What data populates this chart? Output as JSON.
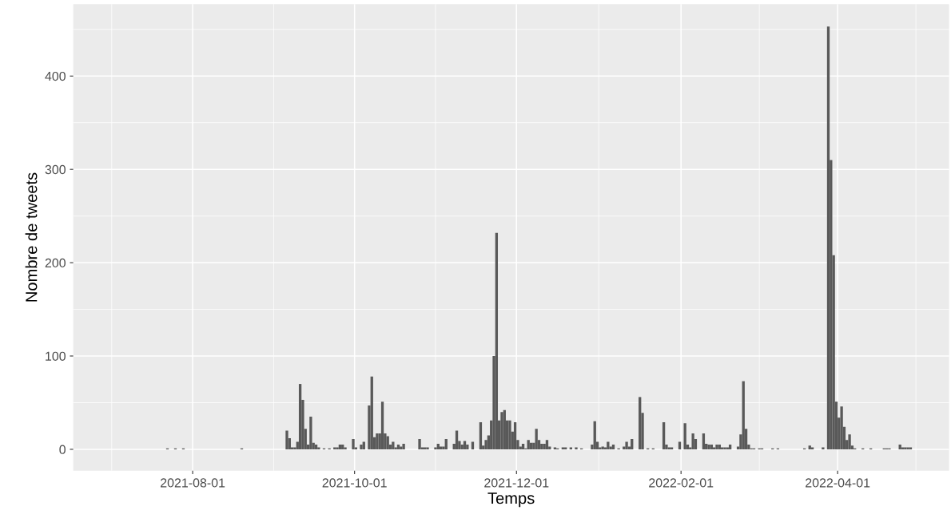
{
  "chart_data": {
    "type": "bar",
    "xlabel": "Temps",
    "ylabel": "Nombre de tweets",
    "series": [
      {
        "color": "#595959",
        "x": [
          "2021-07-22",
          "2021-07-25",
          "2021-07-28",
          "2021-08-19",
          "2021-09-05",
          "2021-09-06",
          "2021-09-07",
          "2021-09-08",
          "2021-09-09",
          "2021-09-10",
          "2021-09-11",
          "2021-09-12",
          "2021-09-13",
          "2021-09-14",
          "2021-09-15",
          "2021-09-16",
          "2021-09-17",
          "2021-09-19",
          "2021-09-21",
          "2021-09-23",
          "2021-09-24",
          "2021-09-25",
          "2021-09-26",
          "2021-09-27",
          "2021-09-30",
          "2021-10-01",
          "2021-10-03",
          "2021-10-04",
          "2021-10-06",
          "2021-10-07",
          "2021-10-08",
          "2021-10-09",
          "2021-10-10",
          "2021-10-11",
          "2021-10-12",
          "2021-10-13",
          "2021-10-14",
          "2021-10-15",
          "2021-10-16",
          "2021-10-17",
          "2021-10-18",
          "2021-10-19",
          "2021-10-25",
          "2021-10-26",
          "2021-10-27",
          "2021-10-28",
          "2021-10-31",
          "2021-11-01",
          "2021-11-02",
          "2021-11-03",
          "2021-11-04",
          "2021-11-07",
          "2021-11-08",
          "2021-11-09",
          "2021-11-10",
          "2021-11-11",
          "2021-11-12",
          "2021-11-14",
          "2021-11-17",
          "2021-11-18",
          "2021-11-19",
          "2021-11-20",
          "2021-11-21",
          "2021-11-22",
          "2021-11-23",
          "2021-11-24",
          "2021-11-25",
          "2021-11-26",
          "2021-11-27",
          "2021-11-28",
          "2021-11-29",
          "2021-11-30",
          "2021-12-01",
          "2021-12-02",
          "2021-12-03",
          "2021-12-04",
          "2021-12-05",
          "2021-12-06",
          "2021-12-07",
          "2021-12-08",
          "2021-12-09",
          "2021-12-10",
          "2021-12-11",
          "2021-12-12",
          "2021-12-13",
          "2021-12-15",
          "2021-12-16",
          "2021-12-18",
          "2021-12-19",
          "2021-12-21",
          "2021-12-23",
          "2021-12-25",
          "2021-12-29",
          "2021-12-30",
          "2021-12-31",
          "2022-01-01",
          "2022-01-02",
          "2022-01-03",
          "2022-01-04",
          "2022-01-05",
          "2022-01-06",
          "2022-01-08",
          "2022-01-10",
          "2022-01-11",
          "2022-01-12",
          "2022-01-13",
          "2022-01-16",
          "2022-01-17",
          "2022-01-19",
          "2022-01-21",
          "2022-01-25",
          "2022-01-26",
          "2022-01-27",
          "2022-01-28",
          "2022-01-31",
          "2022-02-02",
          "2022-02-03",
          "2022-02-04",
          "2022-02-05",
          "2022-02-06",
          "2022-02-09",
          "2022-02-10",
          "2022-02-11",
          "2022-02-12",
          "2022-02-13",
          "2022-02-14",
          "2022-02-15",
          "2022-02-16",
          "2022-02-17",
          "2022-02-18",
          "2022-02-19",
          "2022-02-22",
          "2022-02-23",
          "2022-02-24",
          "2022-02-25",
          "2022-02-26",
          "2022-02-27",
          "2022-02-28",
          "2022-03-02",
          "2022-03-03",
          "2022-03-07",
          "2022-03-09",
          "2022-03-19",
          "2022-03-21",
          "2022-03-22",
          "2022-03-26",
          "2022-03-28",
          "2022-03-29",
          "2022-03-30",
          "2022-03-31",
          "2022-04-01",
          "2022-04-02",
          "2022-04-03",
          "2022-04-04",
          "2022-04-05",
          "2022-04-06",
          "2022-04-07",
          "2022-04-10",
          "2022-04-13",
          "2022-04-18",
          "2022-04-19",
          "2022-04-20",
          "2022-04-24",
          "2022-04-25",
          "2022-04-26",
          "2022-04-27",
          "2022-04-28"
        ],
        "values": [
          1,
          1,
          1,
          1,
          20,
          12,
          2,
          2,
          8,
          70,
          53,
          22,
          5,
          35,
          7,
          5,
          2,
          1,
          1,
          2,
          2,
          5,
          5,
          2,
          11,
          2,
          5,
          8,
          47,
          78,
          13,
          17,
          17,
          51,
          17,
          14,
          5,
          8,
          2,
          5,
          3,
          6,
          11,
          2,
          2,
          2,
          2,
          6,
          3,
          3,
          11,
          6,
          20,
          9,
          5,
          9,
          5,
          8,
          29,
          4,
          10,
          15,
          31,
          100,
          232,
          31,
          40,
          42,
          31,
          31,
          19,
          29,
          10,
          3,
          6,
          1,
          10,
          7,
          7,
          22,
          10,
          6,
          6,
          10,
          3,
          2,
          1,
          2,
          2,
          2,
          2,
          1,
          5,
          30,
          8,
          2,
          3,
          2,
          8,
          3,
          5,
          1,
          3,
          8,
          3,
          11,
          56,
          39,
          1,
          1,
          29,
          5,
          2,
          2,
          8,
          28,
          5,
          2,
          17,
          11,
          17,
          6,
          5,
          5,
          2,
          5,
          5,
          2,
          2,
          2,
          5,
          3,
          16,
          73,
          22,
          5,
          1,
          1,
          1,
          1,
          1,
          1,
          1,
          4,
          2,
          2,
          453,
          310,
          208,
          51,
          34,
          46,
          24,
          10,
          16,
          4,
          1,
          1,
          1,
          1,
          1,
          1,
          5,
          2,
          2,
          2,
          2
        ]
      }
    ],
    "xlim": [
      "2021-06-17",
      "2022-05-13"
    ],
    "xticks": [
      "2021-08-01",
      "2021-10-01",
      "2021-12-01",
      "2022-02-01",
      "2022-04-01"
    ],
    "ylim": [
      -23,
      477
    ],
    "yticks": [
      0,
      100,
      200,
      300,
      400
    ],
    "grid": true
  }
}
